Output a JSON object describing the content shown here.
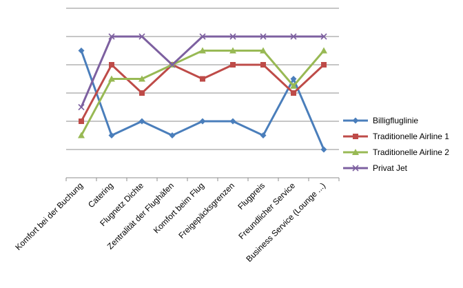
{
  "chart_data": {
    "type": "line",
    "categories": [
      "Komfort bei der Buchung",
      "Catering",
      "Flugnetz Dichte",
      "Zentralität der Flughäfen",
      "Komfort beim Flug",
      "Freigepäcksgrenzen",
      "Flugpreis",
      "Freundlicher Service",
      "Business Service  (Lounge ...)"
    ],
    "ylim": [
      0,
      6
    ],
    "grid": true,
    "y_tick_labels_shown": false,
    "legend_position": "right",
    "series": [
      {
        "name": "Billigfluglinie",
        "values": [
          4.5,
          1.5,
          2.0,
          1.5,
          2.0,
          2.0,
          1.5,
          3.5,
          1.0
        ],
        "color": "#4a7ebb",
        "marker": "diamond"
      },
      {
        "name": "Traditionelle Airline 1",
        "values": [
          2.0,
          4.0,
          3.0,
          4.0,
          3.5,
          4.0,
          4.0,
          3.0,
          4.0
        ],
        "color": "#be4b48",
        "marker": "square"
      },
      {
        "name": "Traditionelle Airline 2",
        "values": [
          1.5,
          3.5,
          3.5,
          4.0,
          4.5,
          4.5,
          4.5,
          3.25,
          4.5
        ],
        "color": "#98b954",
        "marker": "triangle"
      },
      {
        "name": "Privat Jet",
        "values": [
          2.5,
          5.0,
          5.0,
          4.0,
          5.0,
          5.0,
          5.0,
          5.0,
          5.0
        ],
        "color": "#7d60a0",
        "marker": "x"
      }
    ]
  }
}
